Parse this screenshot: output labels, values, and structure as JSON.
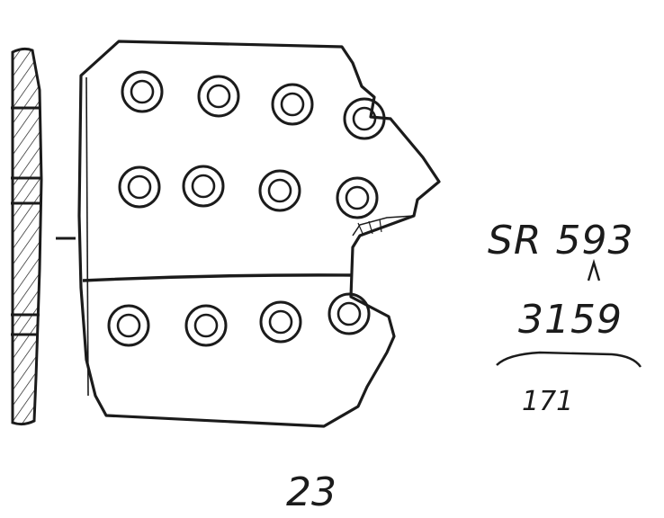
{
  "drawing": {
    "labels": {
      "context": "SR 593",
      "find": "3159",
      "measure": "171",
      "plate_number": "23"
    },
    "ink_color": "#1b1b1b",
    "paper_color": "#ffffff"
  }
}
